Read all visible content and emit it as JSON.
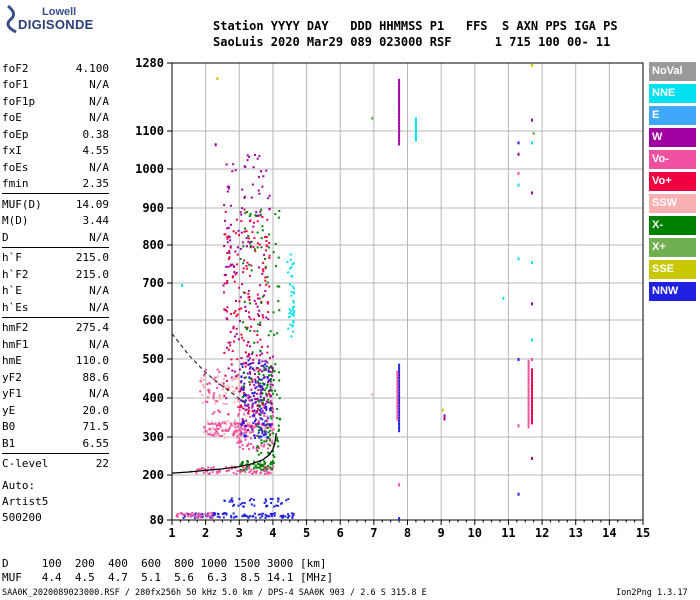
{
  "logo": {
    "top": "Lowell",
    "bottom": "DIGISONDE"
  },
  "header": {
    "line1": "Station YYYY DAY   DDD HHMMSS P1   FFS  S AXN PPS IGA PS",
    "line2": "SaoLuis 2020 Mar29 089 023000 RSF      1 715 100 00- 11"
  },
  "params": [
    {
      "group": [
        {
          "label": "foF2",
          "value": "4.100"
        },
        {
          "label": "foF1",
          "value": "N/A"
        },
        {
          "label": "foF1p",
          "value": "N/A"
        },
        {
          "label": "foE",
          "value": "N/A"
        },
        {
          "label": "foEp",
          "value": "0.38"
        },
        {
          "label": "fxI",
          "value": "4.55"
        },
        {
          "label": "foEs",
          "value": "N/A"
        },
        {
          "label": "fmin",
          "value": "2.35"
        }
      ]
    },
    {
      "group": [
        {
          "label": "MUF(D)",
          "value": "14.09"
        },
        {
          "label": "M(D)",
          "value": "3.44"
        },
        {
          "label": "D",
          "value": "N/A"
        }
      ]
    },
    {
      "group": [
        {
          "label": "h`F",
          "value": "215.0"
        },
        {
          "label": "h`F2",
          "value": "215.0"
        },
        {
          "label": "h`E",
          "value": "N/A"
        },
        {
          "label": "h`Es",
          "value": "N/A"
        }
      ]
    },
    {
      "group": [
        {
          "label": "hmF2",
          "value": "275.4"
        },
        {
          "label": "hmF1",
          "value": "N/A"
        },
        {
          "label": "hmE",
          "value": "110.0"
        },
        {
          "label": "yF2",
          "value": "88.6"
        },
        {
          "label": "yF1",
          "value": "N/A"
        },
        {
          "label": "yE",
          "value": "20.0"
        },
        {
          "label": "B0",
          "value": "71.5"
        },
        {
          "label": "B1",
          "value": "6.55"
        }
      ]
    },
    {
      "group": [
        {
          "label": "C-level",
          "value": "22"
        }
      ]
    }
  ],
  "auto_lines": [
    "Auto:",
    "Artist5",
    "500200"
  ],
  "legend": [
    {
      "label": "NoVal",
      "color": "#999999"
    },
    {
      "label": "NNE",
      "color": "#00e0f0"
    },
    {
      "label": "E",
      "color": "#40a8f8"
    },
    {
      "label": "W",
      "color": "#a000a0"
    },
    {
      "label": "Vo-",
      "color": "#f050a0"
    },
    {
      "label": "Vo+",
      "color": "#f00040"
    },
    {
      "label": "SSW",
      "color": "#f8b0b0"
    },
    {
      "label": "X-",
      "color": "#008000"
    },
    {
      "label": "X+",
      "color": "#70b050"
    },
    {
      "label": "SSE",
      "color": "#c8c800"
    },
    {
      "label": "NNW",
      "color": "#2020e0"
    }
  ],
  "muf_table": {
    "line1": "D     100  200  400  600  800 1000 1500 3000 [km]",
    "line2": "MUF   4.4  4.5  4.7  5.1  5.6  6.3  8.5 14.1 [MHz]"
  },
  "footer": {
    "left": "SAA0K_2020089023000.RSF / 280fx256h 50 kHz 5.0 km / DPS-4 SAA0K 903 / 2.6 S 315.8 E",
    "right": "Ion2Png 1.3.17"
  },
  "chart_data": {
    "type": "scatter",
    "xlim": [
      1,
      15
    ],
    "ylim": [
      80,
      1280
    ],
    "y_ticks": [
      80,
      200,
      300,
      400,
      500,
      600,
      700,
      800,
      900,
      1000,
      1100,
      1280
    ],
    "x_ticks": [
      1,
      2,
      3,
      4,
      5,
      6,
      7,
      8,
      9,
      10,
      11,
      12,
      13,
      14,
      15
    ],
    "x_ticks_major": [
      1,
      2,
      3,
      4,
      5,
      6,
      7,
      8,
      9,
      10,
      11,
      12,
      13,
      14,
      15
    ],
    "grid": true,
    "profile_curve": {
      "x": [
        1.0,
        1.5,
        2.0,
        2.5,
        3.0,
        3.4,
        3.7,
        3.9,
        4.0,
        4.05,
        4.1
      ],
      "y": [
        205,
        208,
        212,
        216,
        222,
        230,
        240,
        254,
        268,
        280,
        310
      ]
    },
    "dashed_curve": {
      "x": [
        1.0,
        1.5,
        2.0,
        2.5,
        2.9,
        3.2
      ],
      "y": [
        565,
        510,
        465,
        430,
        405,
        385
      ]
    },
    "clusters": [
      {
        "series": "SSW",
        "x": [
          1.9,
          3.4
        ],
        "y": [
          300,
          345
        ],
        "n": 60
      },
      {
        "series": "Vo-",
        "x": [
          1.9,
          3.5
        ],
        "y": [
          305,
          340
        ],
        "n": 80
      },
      {
        "series": "Vo-",
        "x": [
          2.9,
          4.0
        ],
        "y": [
          270,
          400
        ],
        "n": 120
      },
      {
        "series": "Vo-",
        "x": [
          1.5,
          4.0
        ],
        "y": [
          205,
          225
        ],
        "n": 90
      },
      {
        "series": "X-",
        "x": [
          3.5,
          4.2
        ],
        "y": [
          250,
          500
        ],
        "n": 90
      },
      {
        "series": "X-",
        "x": [
          3.0,
          4.0
        ],
        "y": [
          215,
          240
        ],
        "n": 50
      },
      {
        "series": "W",
        "x": [
          3.0,
          4.0
        ],
        "y": [
          320,
          520
        ],
        "n": 100
      },
      {
        "series": "NNW",
        "x": [
          3.0,
          3.9
        ],
        "y": [
          300,
          500
        ],
        "n": 110
      },
      {
        "series": "NNW",
        "x": [
          1.3,
          4.6
        ],
        "y": [
          88,
          102
        ],
        "n": 90
      },
      {
        "series": "NNW",
        "x": [
          2.4,
          4.5
        ],
        "y": [
          118,
          140
        ],
        "n": 40
      },
      {
        "series": "Vo+",
        "x": [
          2.5,
          3.9
        ],
        "y": [
          360,
          900
        ],
        "n": 160
      },
      {
        "series": "W",
        "x": [
          2.5,
          3.9
        ],
        "y": [
          400,
          1040
        ],
        "n": 140
      },
      {
        "series": "X-",
        "x": [
          3.0,
          4.2
        ],
        "y": [
          400,
          900
        ],
        "n": 80
      },
      {
        "series": "NNE",
        "x": [
          4.4,
          4.6
        ],
        "y": [
          560,
          790
        ],
        "n": 40
      },
      {
        "series": "SSW",
        "x": [
          1.8,
          3.0
        ],
        "y": [
          380,
          460
        ],
        "n": 50
      },
      {
        "series": "Vo-",
        "x": [
          1.8,
          2.4
        ],
        "y": [
          360,
          480
        ],
        "n": 30
      },
      {
        "series": "Vo-",
        "x": [
          1.1,
          2.2
        ],
        "y": [
          88,
          102
        ],
        "n": 40
      }
    ],
    "columns": [
      {
        "series": "W",
        "x": 7.75,
        "y": [
          1070,
          1245
        ]
      },
      {
        "series": "NNW",
        "x": 7.75,
        "y": [
          320,
          490
        ]
      },
      {
        "series": "Vo-",
        "x": 7.7,
        "y": [
          350,
          470
        ]
      },
      {
        "series": "NNE",
        "x": 8.25,
        "y": [
          1080,
          1140
        ]
      },
      {
        "series": "W",
        "x": 9.1,
        "y": [
          350,
          360
        ]
      },
      {
        "series": "Vo+",
        "x": 11.7,
        "y": [
          340,
          480
        ]
      },
      {
        "series": "Vo-",
        "x": 11.6,
        "y": [
          330,
          500
        ]
      }
    ],
    "points": [
      {
        "series": "W",
        "x": 2.3,
        "y": 1065
      },
      {
        "series": "SSE",
        "x": 2.35,
        "y": 1240
      },
      {
        "series": "NNE",
        "x": 1.3,
        "y": 695
      },
      {
        "series": "X+",
        "x": 6.95,
        "y": 1135
      },
      {
        "series": "SSW",
        "x": 6.95,
        "y": 410
      },
      {
        "series": "NNW",
        "x": 7.75,
        "y": 85
      },
      {
        "series": "Vo-",
        "x": 7.75,
        "y": 175
      },
      {
        "series": "NNE",
        "x": 10.85,
        "y": 660
      },
      {
        "series": "NNW",
        "x": 11.3,
        "y": 1070
      },
      {
        "series": "NNE",
        "x": 11.3,
        "y": 960
      },
      {
        "series": "Vo-",
        "x": 11.3,
        "y": 990
      },
      {
        "series": "W",
        "x": 11.3,
        "y": 1040
      },
      {
        "series": "NNE",
        "x": 11.3,
        "y": 765
      },
      {
        "series": "NNW",
        "x": 11.3,
        "y": 500
      },
      {
        "series": "NNW",
        "x": 11.3,
        "y": 150
      },
      {
        "series": "Vo-",
        "x": 11.3,
        "y": 330
      },
      {
        "series": "W",
        "x": 11.7,
        "y": 1130
      },
      {
        "series": "NNE",
        "x": 11.7,
        "y": 1070
      },
      {
        "series": "W",
        "x": 11.7,
        "y": 940
      },
      {
        "series": "NNE",
        "x": 11.7,
        "y": 755
      },
      {
        "series": "W",
        "x": 11.7,
        "y": 645
      },
      {
        "series": "NNE",
        "x": 11.7,
        "y": 550
      },
      {
        "series": "Vo-",
        "x": 11.7,
        "y": 500
      },
      {
        "series": "W",
        "x": 11.7,
        "y": 245
      },
      {
        "series": "SSE",
        "x": 11.7,
        "y": 1275
      },
      {
        "series": "SSE",
        "x": 9.05,
        "y": 370
      },
      {
        "series": "X+",
        "x": 11.75,
        "y": 1095
      }
    ]
  }
}
